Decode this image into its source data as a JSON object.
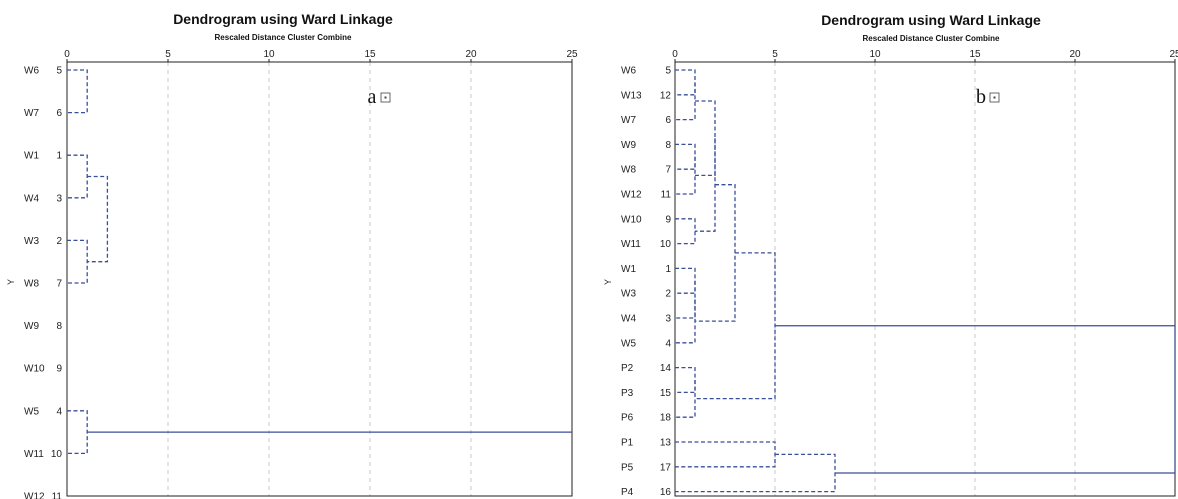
{
  "chart_data": [
    {
      "type": "dendrogram",
      "panel_label": "a",
      "title": "Dendrogram using Ward Linkage",
      "subtitle": "Rescaled Distance Cluster Combine",
      "ylabel": "Y",
      "xlim": [
        0,
        25
      ],
      "xticks": [
        0,
        5,
        10,
        15,
        20,
        25
      ],
      "grid": true,
      "leaves": [
        {
          "label": "W6",
          "case": 5
        },
        {
          "label": "W7",
          "case": 6
        },
        {
          "label": "W1",
          "case": 1
        },
        {
          "label": "W4",
          "case": 3
        },
        {
          "label": "W3",
          "case": 2
        },
        {
          "label": "W8",
          "case": 7
        },
        {
          "label": "W9",
          "case": 8
        },
        {
          "label": "W10",
          "case": 9
        },
        {
          "label": "W5",
          "case": 4
        },
        {
          "label": "W11",
          "case": 10
        },
        {
          "label": "W12",
          "case": 11
        }
      ],
      "merges": [
        {
          "left": 0,
          "right": 1,
          "distance": 1
        },
        {
          "left": 2,
          "right": 3,
          "distance": 1
        },
        {
          "left": 4,
          "right": 5,
          "distance": 1
        },
        {
          "left": 12,
          "right": 13,
          "distance": 2
        },
        {
          "left": 15,
          "right": 6,
          "distance": 2
        },
        {
          "left": 16,
          "right": 7,
          "distance": 5
        },
        {
          "left": 8,
          "right": 9,
          "distance": 1
        },
        {
          "left": 18,
          "right": 10,
          "distance": 2
        },
        {
          "left": 17,
          "right": 19,
          "distance": 25
        }
      ]
    },
    {
      "type": "dendrogram",
      "panel_label": "b",
      "title": "Dendrogram using Ward Linkage",
      "subtitle": "Rescaled Distance Cluster Combine",
      "ylabel": "Y",
      "xlim": [
        0,
        25
      ],
      "xticks": [
        0,
        5,
        10,
        15,
        20,
        25
      ],
      "grid": true,
      "leaves": [
        {
          "label": "W6",
          "case": 5
        },
        {
          "label": "W13",
          "case": 12
        },
        {
          "label": "W7",
          "case": 6
        },
        {
          "label": "W9",
          "case": 8
        },
        {
          "label": "W8",
          "case": 7
        },
        {
          "label": "W12",
          "case": 11
        },
        {
          "label": "W10",
          "case": 9
        },
        {
          "label": "W11",
          "case": 10
        },
        {
          "label": "W1",
          "case": 1
        },
        {
          "label": "W3",
          "case": 2
        },
        {
          "label": "W4",
          "case": 3
        },
        {
          "label": "W5",
          "case": 4
        },
        {
          "label": "P2",
          "case": 14
        },
        {
          "label": "P3",
          "case": 15
        },
        {
          "label": "P6",
          "case": 18
        },
        {
          "label": "P1",
          "case": 13
        },
        {
          "label": "P5",
          "case": 17
        },
        {
          "label": "P4",
          "case": 16
        }
      ],
      "merges": [
        {
          "left": 0,
          "right": 1,
          "distance": 1
        },
        {
          "left": 18,
          "right": 2,
          "distance": 1
        },
        {
          "left": 3,
          "right": 4,
          "distance": 1
        },
        {
          "left": 20,
          "right": 5,
          "distance": 1
        },
        {
          "left": 6,
          "right": 7,
          "distance": 1
        },
        {
          "left": 19,
          "right": 21,
          "distance": 2
        },
        {
          "left": 23,
          "right": 22,
          "distance": 2
        },
        {
          "left": 8,
          "right": 9,
          "distance": 1
        },
        {
          "left": 25,
          "right": 10,
          "distance": 1
        },
        {
          "left": 26,
          "right": 11,
          "distance": 1
        },
        {
          "left": 24,
          "right": 27,
          "distance": 3
        },
        {
          "left": 12,
          "right": 13,
          "distance": 1
        },
        {
          "left": 29,
          "right": 14,
          "distance": 1
        },
        {
          "left": 28,
          "right": 30,
          "distance": 5
        },
        {
          "left": 15,
          "right": 16,
          "distance": 5
        },
        {
          "left": 32,
          "right": 17,
          "distance": 8
        },
        {
          "left": 31,
          "right": 33,
          "distance": 25
        }
      ]
    }
  ]
}
